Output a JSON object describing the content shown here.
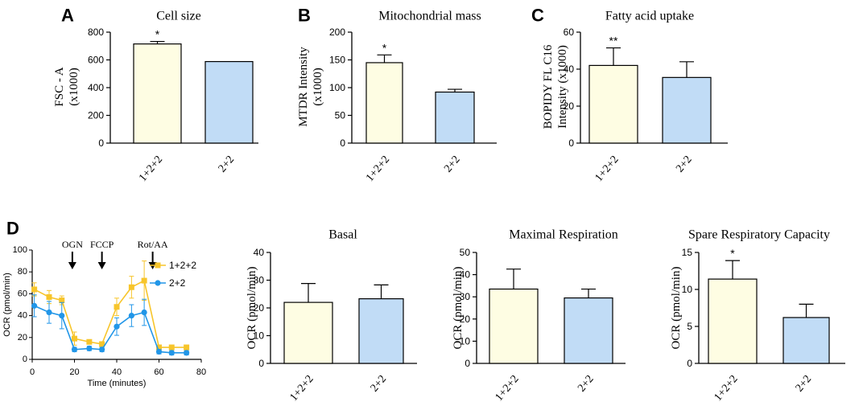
{
  "colors": {
    "bar_a": "#fefde3",
    "bar_b": "#c1dcf6",
    "line_a": "#f7c52b",
    "line_b": "#2196e8",
    "axis": "#000000"
  },
  "chart_data": [
    {
      "id": "A",
      "letter": "A",
      "type": "bar",
      "title": "Cell size",
      "ylabel_lines": [
        "FSC - A",
        "(x1000)"
      ],
      "categories": [
        "1+2+2",
        "2+2"
      ],
      "values": [
        715,
        588
      ],
      "errors": [
        18,
        0
      ],
      "significance": [
        "*",
        ""
      ],
      "ylim": [
        0,
        800
      ],
      "yticks": [
        "0",
        "200",
        "400",
        "600",
        "800"
      ]
    },
    {
      "id": "B",
      "letter": "B",
      "type": "bar",
      "title": "Mitochondrial mass",
      "ylabel_lines": [
        "MTDR Intensity",
        "(x1000)"
      ],
      "categories": [
        "1+2+2",
        "2+2"
      ],
      "values": [
        145,
        92
      ],
      "errors": [
        14,
        5
      ],
      "significance": [
        "*",
        ""
      ],
      "ylim": [
        0,
        200
      ],
      "yticks": [
        "0",
        "50",
        "100",
        "150",
        "200"
      ]
    },
    {
      "id": "C",
      "letter": "C",
      "type": "bar",
      "title": "Fatty acid uptake",
      "ylabel_lines": [
        "BOPIDY FL C16",
        "Intensity (x1000)"
      ],
      "categories": [
        "1+2+2",
        "2+2"
      ],
      "values": [
        42,
        35.5
      ],
      "errors": [
        9.5,
        8.5
      ],
      "significance": [
        "**",
        ""
      ],
      "ylim": [
        0,
        60
      ],
      "yticks": [
        "0",
        "20",
        "40",
        "60"
      ]
    },
    {
      "id": "D",
      "letter": "D",
      "type": "line",
      "ylabel": "OCR (pmol/min)",
      "xlabel": "Time (minutes)",
      "xlim": [
        0,
        80
      ],
      "ylim": [
        0,
        100
      ],
      "xticks": [
        "0",
        "20",
        "40",
        "60",
        "80"
      ],
      "yticks": [
        "0",
        "20",
        "40",
        "60",
        "80",
        "100"
      ],
      "annotations": [
        {
          "label": "OGN",
          "x": 19
        },
        {
          "label": "FCCP",
          "x": 33
        },
        {
          "label": "Rot/AA",
          "x": 57
        }
      ],
      "series": [
        {
          "name": "1+2+2",
          "x": [
            1,
            8,
            14,
            20,
            27,
            33,
            40,
            47,
            53,
            60,
            66,
            73
          ],
          "y": [
            64,
            57,
            54,
            19,
            16,
            14,
            48,
            66,
            72,
            11,
            11,
            11
          ],
          "err": [
            6,
            6,
            4,
            6,
            2,
            2,
            8,
            10,
            18,
            2,
            2,
            2
          ]
        },
        {
          "name": "2+2",
          "x": [
            1,
            8,
            14,
            20,
            27,
            33,
            40,
            47,
            53,
            60,
            66,
            73
          ],
          "y": [
            49,
            43,
            40,
            9,
            10,
            9,
            30,
            40,
            43,
            7,
            6,
            6
          ],
          "err": [
            10,
            10,
            12,
            2,
            2,
            2,
            8,
            10,
            12,
            2,
            2,
            2
          ]
        }
      ]
    },
    {
      "id": "E",
      "type": "bar",
      "title": "Basal",
      "ylabel_lines": [
        "OCR (pmol/min)"
      ],
      "categories": [
        "1+2+2",
        "2+2"
      ],
      "values": [
        22,
        23.3
      ],
      "errors": [
        6.8,
        5
      ],
      "significance": [
        "",
        ""
      ],
      "ylim": [
        0,
        40
      ],
      "yticks": [
        "0",
        "10",
        "20",
        "30",
        "40"
      ]
    },
    {
      "id": "F",
      "type": "bar",
      "title": "Maximal Respiration",
      "ylabel_lines": [
        "OCR (pmol/min)"
      ],
      "categories": [
        "1+2+2",
        "2+2"
      ],
      "values": [
        33.5,
        29.5
      ],
      "errors": [
        9,
        4
      ],
      "significance": [
        "",
        ""
      ],
      "ylim": [
        0,
        50
      ],
      "yticks": [
        "0",
        "10",
        "20",
        "30",
        "40",
        "50"
      ]
    },
    {
      "id": "G",
      "type": "bar",
      "title": "Spare Respiratory Capacity",
      "ylabel_lines": [
        "OCR (pmol/min)"
      ],
      "categories": [
        "1+2+2",
        "2+2"
      ],
      "values": [
        11.4,
        6.2
      ],
      "errors": [
        2.5,
        1.8
      ],
      "significance": [
        "*",
        ""
      ],
      "ylim": [
        0,
        15
      ],
      "yticks": [
        "0",
        "5",
        "10",
        "15"
      ]
    }
  ]
}
